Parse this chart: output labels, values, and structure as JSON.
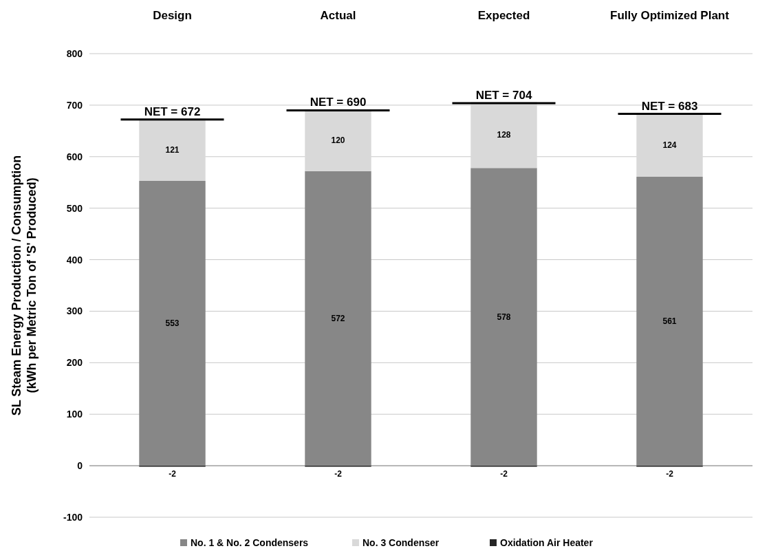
{
  "chart_data": {
    "type": "bar",
    "stacked": true,
    "categories": [
      "Design",
      "Actual",
      "Expected",
      "Fully Optimized Plant"
    ],
    "series": [
      {
        "name": "No. 1 & No. 2 Condensers",
        "color": "#878787",
        "values": [
          553,
          572,
          578,
          561
        ]
      },
      {
        "name": "No. 3 Condenser",
        "color": "#d9d9d9",
        "values": [
          121,
          120,
          128,
          124
        ]
      },
      {
        "name": "Oxidation Air Heater",
        "color": "#262626",
        "values": [
          -2,
          -2,
          -2,
          -2
        ]
      }
    ],
    "ylabel": "SL  Steam Energy Production / Consumption\n(kWh per Metric Ton of 'S' Produced)",
    "ylim": [
      -100,
      800
    ],
    "yticks": [
      -100,
      0,
      100,
      200,
      300,
      400,
      500,
      600,
      700,
      800
    ],
    "grid": "y",
    "legend": "bottom",
    "data_labels": true,
    "annotations": [
      {
        "text": "NET = 672",
        "x": "Design",
        "y": 672
      },
      {
        "text": "NET = 690",
        "x": "Actual",
        "y": 690
      },
      {
        "text": "NET = 704",
        "x": "Expected",
        "y": 704
      },
      {
        "text": "NET = 683",
        "x": "Fully Optimized Plant",
        "y": 683
      }
    ]
  }
}
